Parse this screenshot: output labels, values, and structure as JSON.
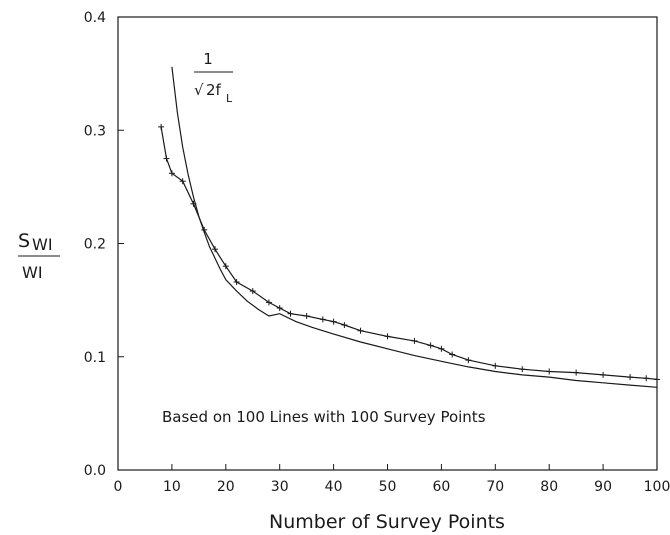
{
  "chart_data": {
    "type": "line",
    "xlabel": "Number of Survey Points",
    "ylabel": {
      "numerator": "S",
      "numerator_sub": "WI",
      "denominator": "WI"
    },
    "xlim": [
      0,
      100
    ],
    "ylim": [
      0.0,
      0.4
    ],
    "xticks": [
      "0",
      "10",
      "20",
      "30",
      "40",
      "50",
      "60",
      "70",
      "80",
      "90",
      "100"
    ],
    "yticks": [
      "0.0",
      "0.1",
      "0.2",
      "0.3",
      "0.4"
    ],
    "grid": false,
    "legend": "none",
    "annotations": {
      "note": "Based on 100 Lines with 100 Survey Points",
      "formula_numerator": "1",
      "formula_radical": "√",
      "formula_denominator": "2f",
      "formula_subscript": "L"
    },
    "series": [
      {
        "style": "crosses",
        "x": [
          8,
          9,
          10,
          12,
          14,
          16,
          18,
          20,
          22,
          25,
          28,
          30,
          32,
          35,
          38,
          40,
          42,
          45,
          50,
          55,
          58,
          60,
          62,
          65,
          70,
          75,
          80,
          85,
          90,
          95,
          98,
          100
        ],
        "y": [
          0.303,
          0.275,
          0.262,
          0.255,
          0.235,
          0.212,
          0.195,
          0.18,
          0.166,
          0.158,
          0.148,
          0.143,
          0.138,
          0.136,
          0.133,
          0.131,
          0.128,
          0.123,
          0.118,
          0.114,
          0.11,
          0.107,
          0.102,
          0.097,
          0.092,
          0.089,
          0.087,
          0.086,
          0.084,
          0.082,
          0.081,
          0.08
        ]
      },
      {
        "style": "solid",
        "x": [
          10,
          11,
          12,
          13,
          14,
          15,
          16,
          17,
          18,
          19,
          20,
          22,
          24,
          26,
          28,
          30,
          33,
          36,
          40,
          45,
          50,
          55,
          60,
          65,
          70,
          75,
          80,
          85,
          90,
          95,
          100
        ],
        "y": [
          0.356,
          0.316,
          0.285,
          0.261,
          0.241,
          0.224,
          0.21,
          0.197,
          0.187,
          0.177,
          0.168,
          0.158,
          0.149,
          0.142,
          0.136,
          0.138,
          0.131,
          0.126,
          0.12,
          0.113,
          0.107,
          0.101,
          0.096,
          0.091,
          0.087,
          0.084,
          0.082,
          0.079,
          0.077,
          0.075,
          0.073
        ]
      }
    ]
  }
}
